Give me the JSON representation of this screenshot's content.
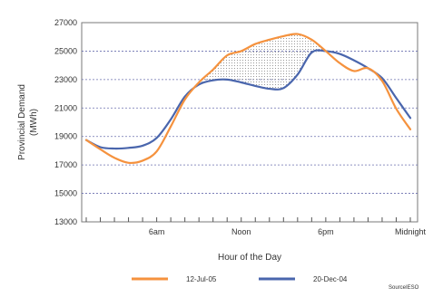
{
  "chart_data": {
    "type": "line",
    "xlabel": "Hour of the Day",
    "ylabel": "Provincial Demand",
    "ylabel_unit": "(MWh)",
    "ylim": [
      13000,
      27000
    ],
    "y_ticks": [
      "13000",
      "15000",
      "17000",
      "19000",
      "21000",
      "23000",
      "25000",
      "27000"
    ],
    "y_tick_values": [
      13000,
      15000,
      17000,
      19000,
      21000,
      23000,
      25000,
      27000
    ],
    "x_tick_labels": [
      {
        "hour": 6,
        "label": "6am"
      },
      {
        "hour": 12,
        "label": "Noon"
      },
      {
        "hour": 18,
        "label": "6pm"
      },
      {
        "hour": 24,
        "label": "Midnight"
      }
    ],
    "x": [
      1,
      2,
      3,
      4,
      5,
      6,
      7,
      8,
      9,
      10,
      11,
      12,
      13,
      14,
      15,
      16,
      17,
      18,
      19,
      20,
      21,
      22,
      23,
      24
    ],
    "series": [
      {
        "name": "12-Jul-05",
        "color": "#f5923e",
        "values": [
          18750,
          18100,
          17500,
          17150,
          17300,
          17950,
          19700,
          21600,
          22800,
          23700,
          24700,
          25000,
          25500,
          25800,
          26050,
          26200,
          25800,
          25000,
          24150,
          23600,
          23800,
          22900,
          20950,
          19500
        ]
      },
      {
        "name": "20-Dec-04",
        "color": "#4a66ad",
        "values": [
          18750,
          18250,
          18150,
          18200,
          18350,
          18900,
          20200,
          21800,
          22650,
          22950,
          23000,
          22800,
          22550,
          22350,
          22400,
          23350,
          24900,
          25000,
          24800,
          24350,
          23800,
          23100,
          21700,
          20300
        ]
      }
    ],
    "highlight": "shaded area where 12-Jul-05 exceeds 20-Dec-04 (midday)",
    "grid": true,
    "legend_position": "bottom",
    "source": "SourceIESO"
  }
}
